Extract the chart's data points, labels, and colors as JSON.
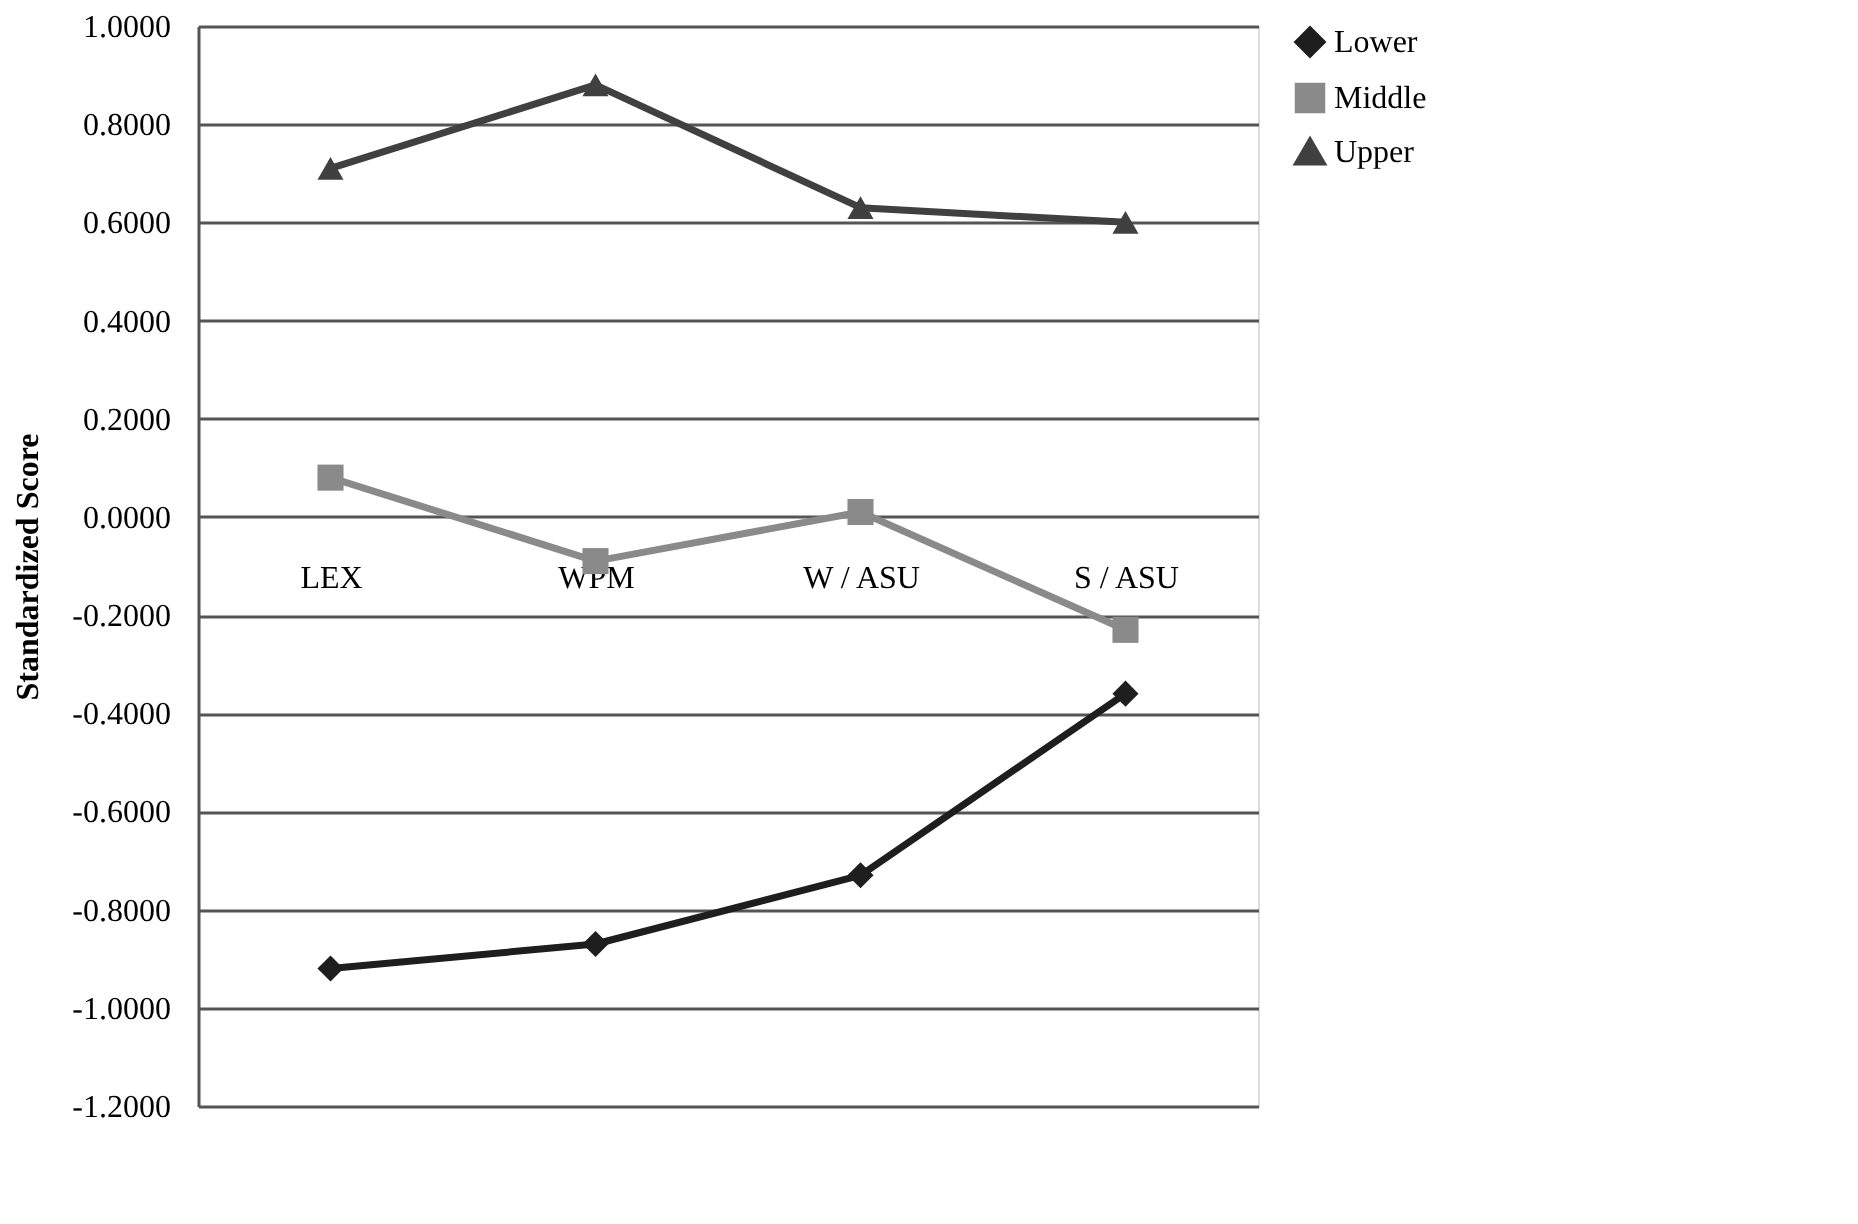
{
  "chart_data": {
    "type": "line",
    "ylabel": "Standardized Score",
    "categories": [
      "LEX",
      "WPM",
      "W / ASU",
      "S / ASU"
    ],
    "series": [
      {
        "name": "Lower",
        "color": "#1e1e1e",
        "marker": "diamond",
        "values": [
          -0.92,
          -0.87,
          -0.73,
          -0.36
        ]
      },
      {
        "name": "Middle",
        "color": "#8a8a8a",
        "marker": "square",
        "values": [
          0.08,
          -0.09,
          0.01,
          -0.23
        ]
      },
      {
        "name": "Upper",
        "color": "#404040",
        "marker": "triangle",
        "values": [
          0.71,
          0.88,
          0.63,
          0.6
        ]
      }
    ],
    "ylim": [
      -1.2,
      1.0
    ],
    "yticks": [
      {
        "value": -1.2,
        "label": "-1.2000"
      },
      {
        "value": -1.0,
        "label": "-1.0000"
      },
      {
        "value": -0.8,
        "label": "-0.8000"
      },
      {
        "value": -0.6,
        "label": "-0.6000"
      },
      {
        "value": -0.4,
        "label": "-0.4000"
      },
      {
        "value": -0.2,
        "label": "-0.2000"
      },
      {
        "value": 0.0,
        "label": "0.0000"
      },
      {
        "value": 0.2,
        "label": "0.2000"
      },
      {
        "value": 0.4,
        "label": "0.4000"
      },
      {
        "value": 0.6,
        "label": "0.6000"
      },
      {
        "value": 0.8,
        "label": "0.8000"
      },
      {
        "value": 1.0,
        "label": "1.0000"
      }
    ],
    "grid": "y",
    "legend": "right",
    "line_style": "solid"
  }
}
